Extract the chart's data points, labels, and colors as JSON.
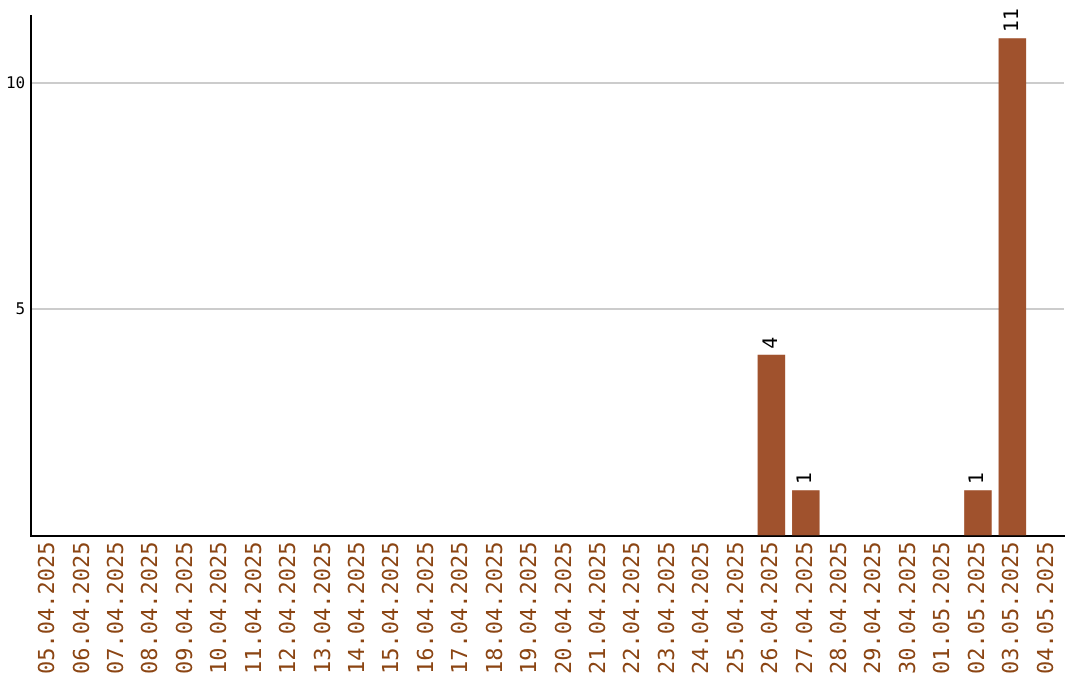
{
  "chart_data": {
    "type": "bar",
    "categories": [
      "05.04.2025",
      "06.04.2025",
      "07.04.2025",
      "08.04.2025",
      "09.04.2025",
      "10.04.2025",
      "11.04.2025",
      "12.04.2025",
      "13.04.2025",
      "14.04.2025",
      "15.04.2025",
      "16.04.2025",
      "17.04.2025",
      "18.04.2025",
      "19.04.2025",
      "20.04.2025",
      "21.04.2025",
      "22.04.2025",
      "23.04.2025",
      "24.04.2025",
      "25.04.2025",
      "26.04.2025",
      "27.04.2025",
      "28.04.2025",
      "29.04.2025",
      "30.04.2025",
      "01.05.2025",
      "02.05.2025",
      "03.05.2025",
      "04.05.2025"
    ],
    "values": [
      0,
      0,
      0,
      0,
      0,
      0,
      0,
      0,
      0,
      0,
      0,
      0,
      0,
      0,
      0,
      0,
      0,
      0,
      0,
      0,
      0,
      4,
      1,
      0,
      0,
      0,
      0,
      1,
      11,
      0
    ],
    "value_labels": [
      null,
      null,
      null,
      null,
      null,
      null,
      null,
      null,
      null,
      null,
      null,
      null,
      null,
      null,
      null,
      null,
      null,
      null,
      null,
      null,
      null,
      "4",
      "1",
      null,
      null,
      null,
      null,
      "1",
      "11",
      null
    ],
    "color": "#a0522d",
    "ylim": [
      0,
      11.5
    ],
    "yticks": [
      5,
      10
    ],
    "grid": "y",
    "legend": false
  }
}
